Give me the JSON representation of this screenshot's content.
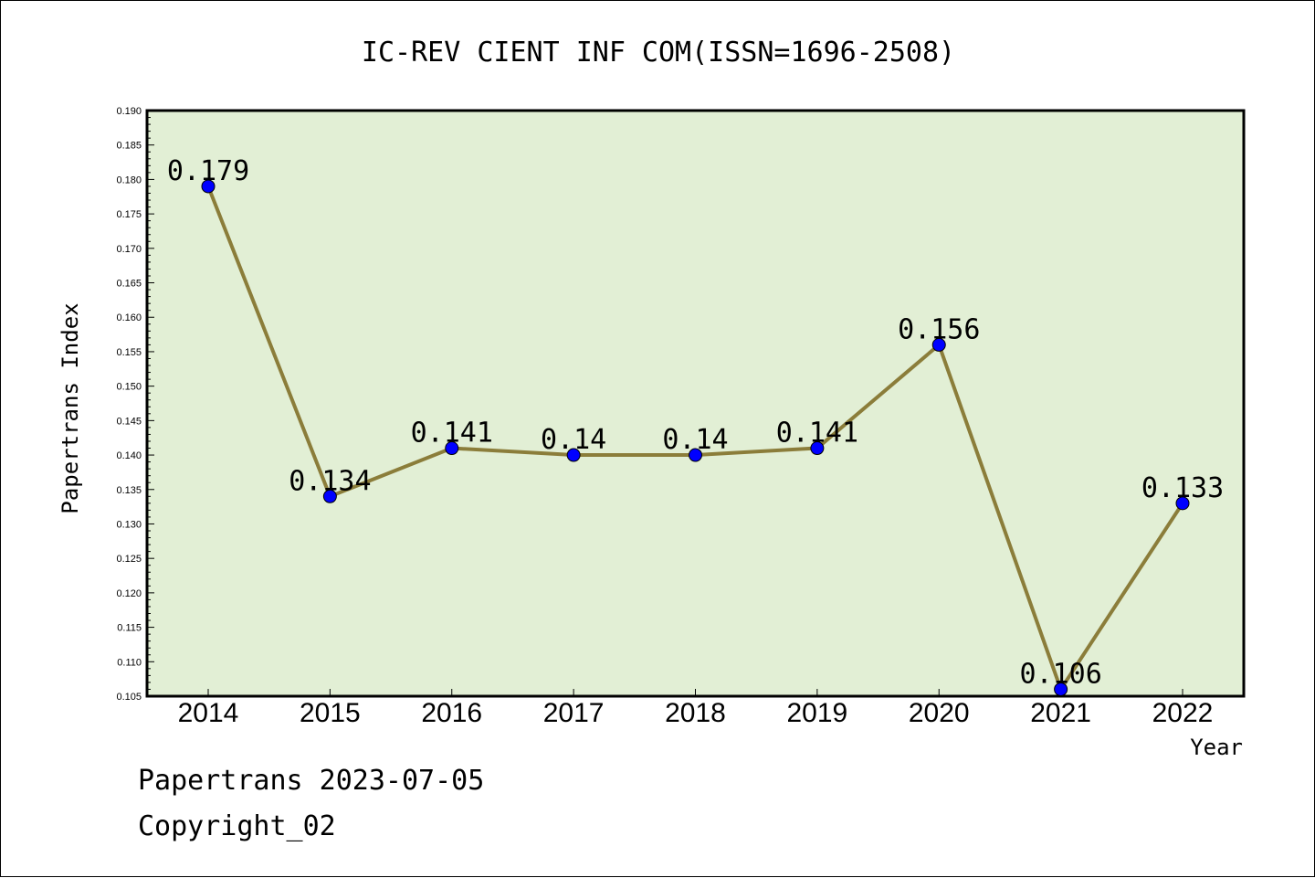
{
  "footer": {
    "line1": "Papertrans 2023-07-05",
    "line2": "Copyright_02"
  },
  "chart_data": {
    "type": "line",
    "title": "IC-REV CIENT INF COM(ISSN=1696-2508)",
    "xlabel": "Year",
    "ylabel": "Papertrans Index",
    "categories": [
      "2014",
      "2015",
      "2016",
      "2017",
      "2018",
      "2019",
      "2020",
      "2021",
      "2022"
    ],
    "values": [
      0.179,
      0.134,
      0.141,
      0.14,
      0.14,
      0.141,
      0.156,
      0.106,
      0.133
    ],
    "data_labels": [
      "0.179",
      "0.134",
      "0.141",
      "0.14",
      "0.14",
      "0.141",
      "0.156",
      "0.106",
      "0.133"
    ],
    "yticks": [
      "0.105",
      "0.110",
      "0.115",
      "0.120",
      "0.125",
      "0.130",
      "0.135",
      "0.140",
      "0.145",
      "0.150",
      "0.155",
      "0.160",
      "0.165",
      "0.170",
      "0.175",
      "0.180",
      "0.185",
      "0.190"
    ],
    "ylim": [
      0.105,
      0.19
    ],
    "grid": false,
    "colors": {
      "plot_background": "#e2efd5",
      "line": "#8b7d3a",
      "marker": "#0000ff"
    }
  }
}
